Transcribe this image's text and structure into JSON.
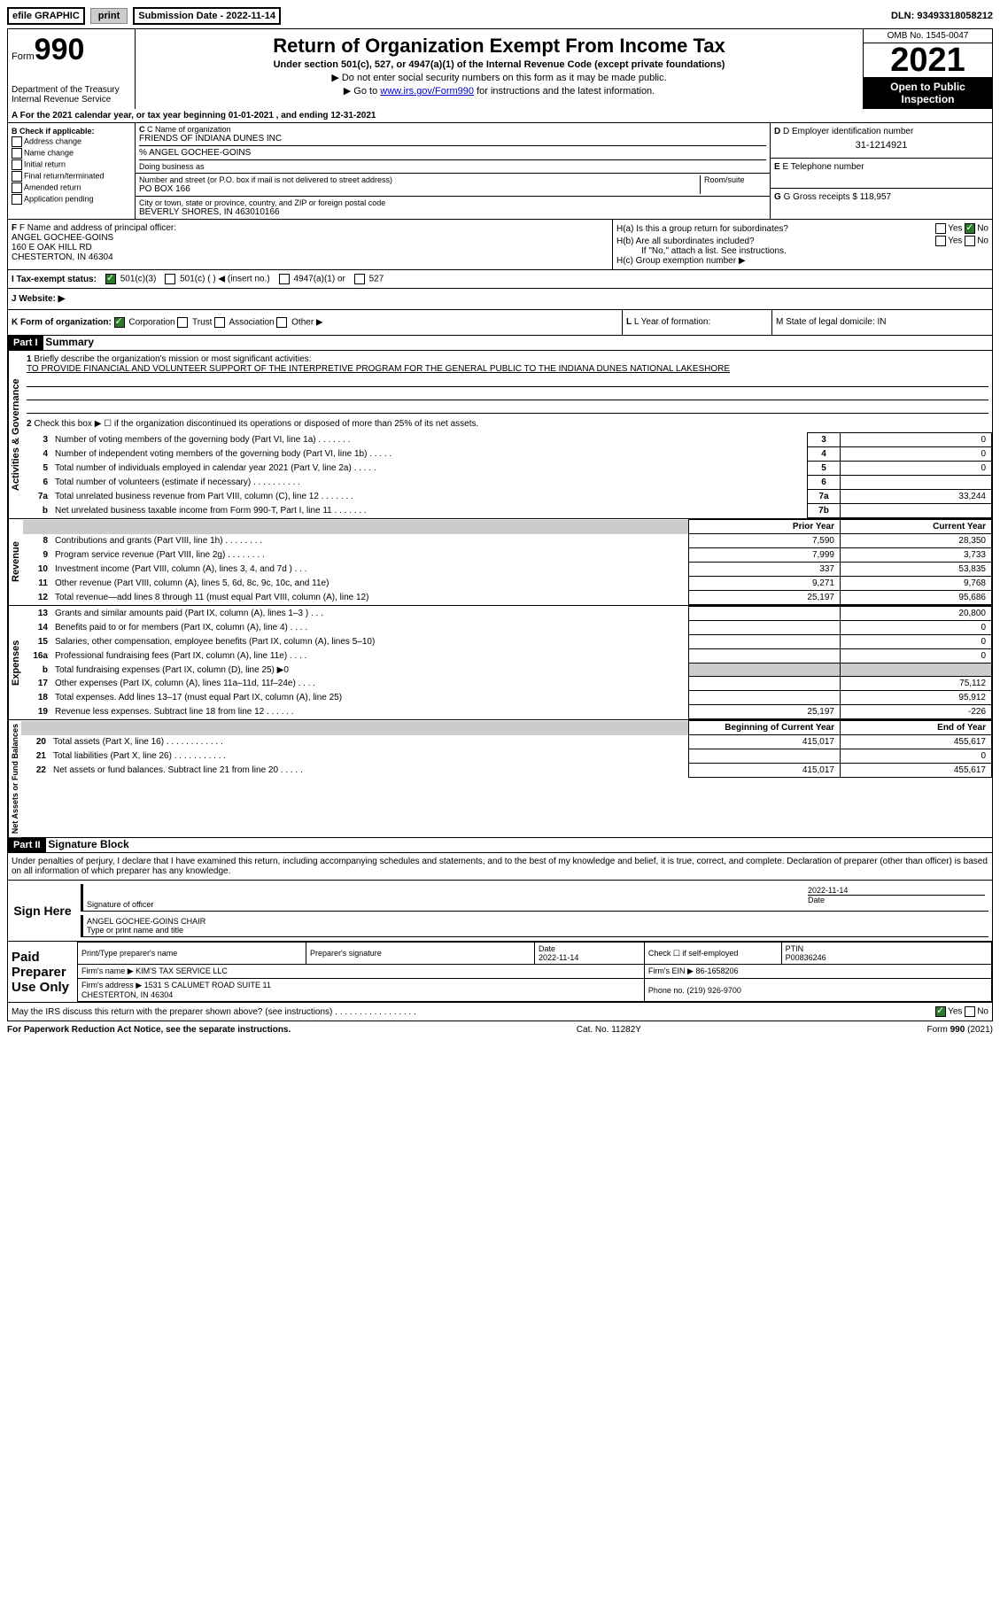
{
  "topbar": {
    "efile": "efile GRAPHIC",
    "print": "print",
    "submission_label": "Submission Date - ",
    "submission_date": "2022-11-14",
    "dln_label": "DLN: ",
    "dln": "93493318058212"
  },
  "header": {
    "form_label": "Form",
    "form_number": "990",
    "dept": "Department of the Treasury",
    "irs": "Internal Revenue Service",
    "title": "Return of Organization Exempt From Income Tax",
    "subtitle": "Under section 501(c), 527, or 4947(a)(1) of the Internal Revenue Code (except private foundations)",
    "note1": "▶ Do not enter social security numbers on this form as it may be made public.",
    "note2_pre": "▶ Go to ",
    "note2_link": "www.irs.gov/Form990",
    "note2_post": " for instructions and the latest information.",
    "omb": "OMB No. 1545-0047",
    "year": "2021",
    "open": "Open to Public Inspection"
  },
  "lineA": "A For the 2021 calendar year, or tax year beginning 01-01-2021   , and ending 12-31-2021",
  "checkB": {
    "label": "B Check if applicable:",
    "opts": [
      "Address change",
      "Name change",
      "Initial return",
      "Final return/terminated",
      "Amended return",
      "Application pending"
    ]
  },
  "entity": {
    "c_label": "C Name of organization",
    "c_name": "FRIENDS OF INDIANA DUNES INC",
    "care_of": "% ANGEL GOCHEE-GOINS",
    "dba": "Doing business as",
    "street_label": "Number and street (or P.O. box if mail is not delivered to street address)",
    "room_label": "Room/suite",
    "street": "PO BOX 166",
    "city_label": "City or town, state or province, country, and ZIP or foreign postal code",
    "city": "BEVERLY SHORES, IN  463010166",
    "d_label": "D Employer identification number",
    "d_val": "31-1214921",
    "e_label": "E Telephone number",
    "g_label": "G Gross receipts $ ",
    "g_val": "118,957"
  },
  "sectionF": {
    "f_label": "F Name and address of principal officer:",
    "f_name": "ANGEL GOCHEE-GOINS",
    "f_addr1": "160 E OAK HILL RD",
    "f_addr2": "CHESTERTON, IN  46304",
    "ha_label": "H(a)  Is this a group return for subordinates?",
    "hb_label": "H(b)  Are all subordinates included?",
    "hb_note": "If \"No,\" attach a list. See instructions.",
    "hc_label": "H(c)  Group exemption number ▶",
    "yes": "Yes",
    "no": "No"
  },
  "taxStatus": {
    "i_label": "I  Tax-exempt status:",
    "opt1": "501(c)(3)",
    "opt2": "501(c) (  ) ◀ (insert no.)",
    "opt3": "4947(a)(1) or",
    "opt4": "527"
  },
  "website": {
    "label": "J  Website: ▶"
  },
  "rowK": {
    "k": "K Form of organization:",
    "corp": "Corporation",
    "trust": "Trust",
    "assoc": "Association",
    "other": "Other ▶",
    "l": "L Year of formation:",
    "m": "M State of legal domicile: IN"
  },
  "part1": {
    "label": "Part I",
    "title": "Summary",
    "q1": "Briefly describe the organization's mission or most significant activities:",
    "mission": "TO PROVIDE FINANCIAL AND VOLUNTEER SUPPORT OF THE INTERPRETIVE PROGRAM FOR THE GENERAL PUBLIC TO THE INDIANA DUNES NATIONAL LAKESHORE",
    "q2": "Check this box ▶ ☐  if the organization discontinued its operations or disposed of more than 25% of its net assets.",
    "vert_ag": "Activities & Governance",
    "vert_rev": "Revenue",
    "vert_exp": "Expenses",
    "vert_net": "Net Assets or Fund Balances",
    "rows_ag": [
      {
        "n": "3",
        "t": "Number of voting members of the governing body (Part VI, line 1a)   .    .    .    .    .    .    .",
        "box": "3",
        "v": "0"
      },
      {
        "n": "4",
        "t": "Number of independent voting members of the governing body (Part VI, line 1b)   .    .    .    .    .",
        "box": "4",
        "v": "0"
      },
      {
        "n": "5",
        "t": "Total number of individuals employed in calendar year 2021 (Part V, line 2a)   .    .    .    .    .",
        "box": "5",
        "v": "0"
      },
      {
        "n": "6",
        "t": "Total number of volunteers (estimate if necessary)    .    .    .    .    .    .    .    .    .    .",
        "box": "6",
        "v": ""
      },
      {
        "n": "7a",
        "t": "Total unrelated business revenue from Part VIII, column (C), line 12    .    .    .    .    .    .    .",
        "box": "7a",
        "v": "33,244"
      },
      {
        "n": "b",
        "t": "Net unrelated business taxable income from Form 990-T, Part I, line 11   .    .    .    .    .    .    .",
        "box": "7b",
        "v": ""
      }
    ],
    "col_prior": "Prior Year",
    "col_current": "Current Year",
    "rows_rev": [
      {
        "n": "8",
        "t": "Contributions and grants (Part VIII, line 1h)    .    .    .    .    .    .    .    .",
        "p": "7,590",
        "c": "28,350"
      },
      {
        "n": "9",
        "t": "Program service revenue (Part VIII, line 2g)    .    .    .    .    .    .    .    .",
        "p": "7,999",
        "c": "3,733"
      },
      {
        "n": "10",
        "t": "Investment income (Part VIII, column (A), lines 3, 4, and 7d )    .    .    .",
        "p": "337",
        "c": "53,835"
      },
      {
        "n": "11",
        "t": "Other revenue (Part VIII, column (A), lines 5, 6d, 8c, 9c, 10c, and 11e)",
        "p": "9,271",
        "c": "9,768"
      },
      {
        "n": "12",
        "t": "Total revenue—add lines 8 through 11 (must equal Part VIII, column (A), line 12)",
        "p": "25,197",
        "c": "95,686"
      }
    ],
    "rows_exp": [
      {
        "n": "13",
        "t": "Grants and similar amounts paid (Part IX, column (A), lines 1–3 )   .    .    .",
        "p": "",
        "c": "20,800"
      },
      {
        "n": "14",
        "t": "Benefits paid to or for members (Part IX, column (A), line 4)   .    .    .    .",
        "p": "",
        "c": "0"
      },
      {
        "n": "15",
        "t": "Salaries, other compensation, employee benefits (Part IX, column (A), lines 5–10)",
        "p": "",
        "c": "0"
      },
      {
        "n": "16a",
        "t": "Professional fundraising fees (Part IX, column (A), line 11e)   .    .    .    .",
        "p": "",
        "c": "0"
      },
      {
        "n": "b",
        "t": "Total fundraising expenses (Part IX, column (D), line 25) ▶0",
        "p": "shaded",
        "c": "shaded"
      },
      {
        "n": "17",
        "t": "Other expenses (Part IX, column (A), lines 11a–11d, 11f–24e)    .    .    .    .",
        "p": "",
        "c": "75,112"
      },
      {
        "n": "18",
        "t": "Total expenses. Add lines 13–17 (must equal Part IX, column (A), line 25)",
        "p": "",
        "c": "95,912"
      },
      {
        "n": "19",
        "t": "Revenue less expenses. Subtract line 18 from line 12   .    .    .    .    .    .",
        "p": "25,197",
        "c": "-226"
      }
    ],
    "col_begin": "Beginning of Current Year",
    "col_end": "End of Year",
    "rows_net": [
      {
        "n": "20",
        "t": "Total assets (Part X, line 16)   .    .    .    .    .    .    .    .    .    .    .    .",
        "p": "415,017",
        "c": "455,617"
      },
      {
        "n": "21",
        "t": "Total liabilities (Part X, line 26)   .    .    .    .    .    .    .    .    .    .    .",
        "p": "",
        "c": "0"
      },
      {
        "n": "22",
        "t": "Net assets or fund balances. Subtract line 21 from line 20    .    .    .    .    .",
        "p": "415,017",
        "c": "455,617"
      }
    ]
  },
  "part2": {
    "label": "Part II",
    "title": "Signature Block",
    "declaration": "Under penalties of perjury, I declare that I have examined this return, including accompanying schedules and statements, and to the best of my knowledge and belief, it is true, correct, and complete. Declaration of preparer (other than officer) is based on all information of which preparer has any knowledge.",
    "sign_here": "Sign Here",
    "sig_officer": "Signature of officer",
    "sig_date": "2022-11-14",
    "date_label": "Date",
    "name_title": "ANGEL GOCHEE-GOINS CHAIR",
    "type_name": "Type or print name and title",
    "paid_label": "Paid Preparer Use Only",
    "prep_name_label": "Print/Type preparer's name",
    "prep_sig_label": "Preparer's signature",
    "prep_date": "2022-11-14",
    "check_if": "Check ☐ if self-employed",
    "ptin_label": "PTIN",
    "ptin": "P00836246",
    "firm_name_label": "Firm's name      ▶ ",
    "firm_name": "KIM'S TAX SERVICE LLC",
    "firm_ein_label": "Firm's EIN ▶ ",
    "firm_ein": "86-1658206",
    "firm_addr_label": "Firm's address ▶ ",
    "firm_addr": "1531 S CALUMET ROAD SUITE 11\nCHESTERTON, IN  46304",
    "phone_label": "Phone no. ",
    "phone": "(219) 926-9700",
    "discuss": "May the IRS discuss this return with the preparer shown above? (see instructions)    .    .    .    .    .    .    .    .    .    .    .    .    .    .    .    .    ."
  },
  "footer": {
    "paperwork": "For Paperwork Reduction Act Notice, see the separate instructions.",
    "cat": "Cat. No. 11282Y",
    "form": "Form 990 (2021)"
  }
}
